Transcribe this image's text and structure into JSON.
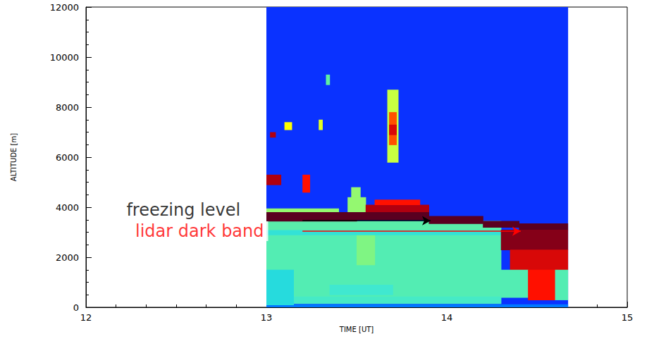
{
  "chart_data": {
    "type": "heatmap",
    "x_label": "TIME [UT]",
    "y_label": "ALTITUDE [m]",
    "xlim": [
      12,
      15
    ],
    "xticks": [
      12,
      13,
      14,
      15
    ],
    "ylim": [
      0,
      12000
    ],
    "yticks": [
      0,
      2000,
      4000,
      6000,
      8000,
      10000,
      12000
    ],
    "grid": false,
    "color_range": [
      0,
      10
    ],
    "cells": [
      [
        13.0,
        14.67,
        0,
        12000,
        0
      ],
      [
        13.0,
        14.67,
        0,
        120,
        1
      ],
      [
        13.0,
        14.3,
        150,
        450,
        3.2
      ],
      [
        13.0,
        14.3,
        450,
        2900,
        3.6
      ],
      [
        13.0,
        13.15,
        100,
        1500,
        2.6
      ],
      [
        13.35,
        13.7,
        500,
        900,
        3.0
      ],
      [
        13.5,
        13.6,
        1700,
        2900,
        4.3
      ],
      [
        13.0,
        14.3,
        2900,
        3100,
        2.8
      ],
      [
        13.0,
        14.3,
        3100,
        3450,
        3.8
      ],
      [
        13.0,
        13.4,
        3800,
        3950,
        4.5
      ],
      [
        13.45,
        13.55,
        3800,
        4400,
        4.5
      ],
      [
        13.55,
        13.9,
        3800,
        4100,
        9
      ],
      [
        13.6,
        13.85,
        4100,
        4300,
        8
      ],
      [
        13.47,
        13.52,
        4400,
        4800,
        4.5
      ],
      [
        13.0,
        13.5,
        3450,
        3800,
        10
      ],
      [
        13.5,
        13.9,
        3500,
        3800,
        10
      ],
      [
        13.9,
        14.2,
        3350,
        3650,
        10
      ],
      [
        14.2,
        14.4,
        3200,
        3450,
        10
      ],
      [
        14.4,
        14.67,
        3100,
        3350,
        10
      ],
      [
        14.3,
        14.67,
        2300,
        3100,
        9.5
      ],
      [
        14.35,
        14.67,
        1500,
        2300,
        8.5
      ],
      [
        14.3,
        14.45,
        400,
        1500,
        3.6
      ],
      [
        14.45,
        14.6,
        300,
        1500,
        8
      ],
      [
        14.6,
        14.67,
        300,
        1500,
        3.6
      ],
      [
        13.67,
        13.73,
        5800,
        8700,
        5
      ],
      [
        13.68,
        13.72,
        6500,
        7800,
        7.5
      ],
      [
        13.68,
        13.72,
        6900,
        7300,
        8.5
      ],
      [
        13.33,
        13.35,
        8900,
        9300,
        4
      ],
      [
        13.29,
        13.31,
        7100,
        7500,
        5.5
      ],
      [
        13.1,
        13.14,
        7100,
        7400,
        6
      ],
      [
        13.0,
        13.08,
        4900,
        5300,
        9
      ],
      [
        13.2,
        13.24,
        4600,
        5300,
        8
      ],
      [
        13.02,
        13.05,
        6800,
        7000,
        9
      ]
    ],
    "annotations": [
      {
        "text": "freezing level",
        "color": "#000000",
        "x": 12.54,
        "y": 3900,
        "arrow": {
          "x0": 13.2,
          "x1": 13.91,
          "y": 3460
        }
      },
      {
        "text": "lidar dark band",
        "color": "#ff0000",
        "x": 12.63,
        "y": 3040,
        "arrow": {
          "x0": 13.2,
          "x1": 14.41,
          "y": 3040
        }
      }
    ]
  }
}
